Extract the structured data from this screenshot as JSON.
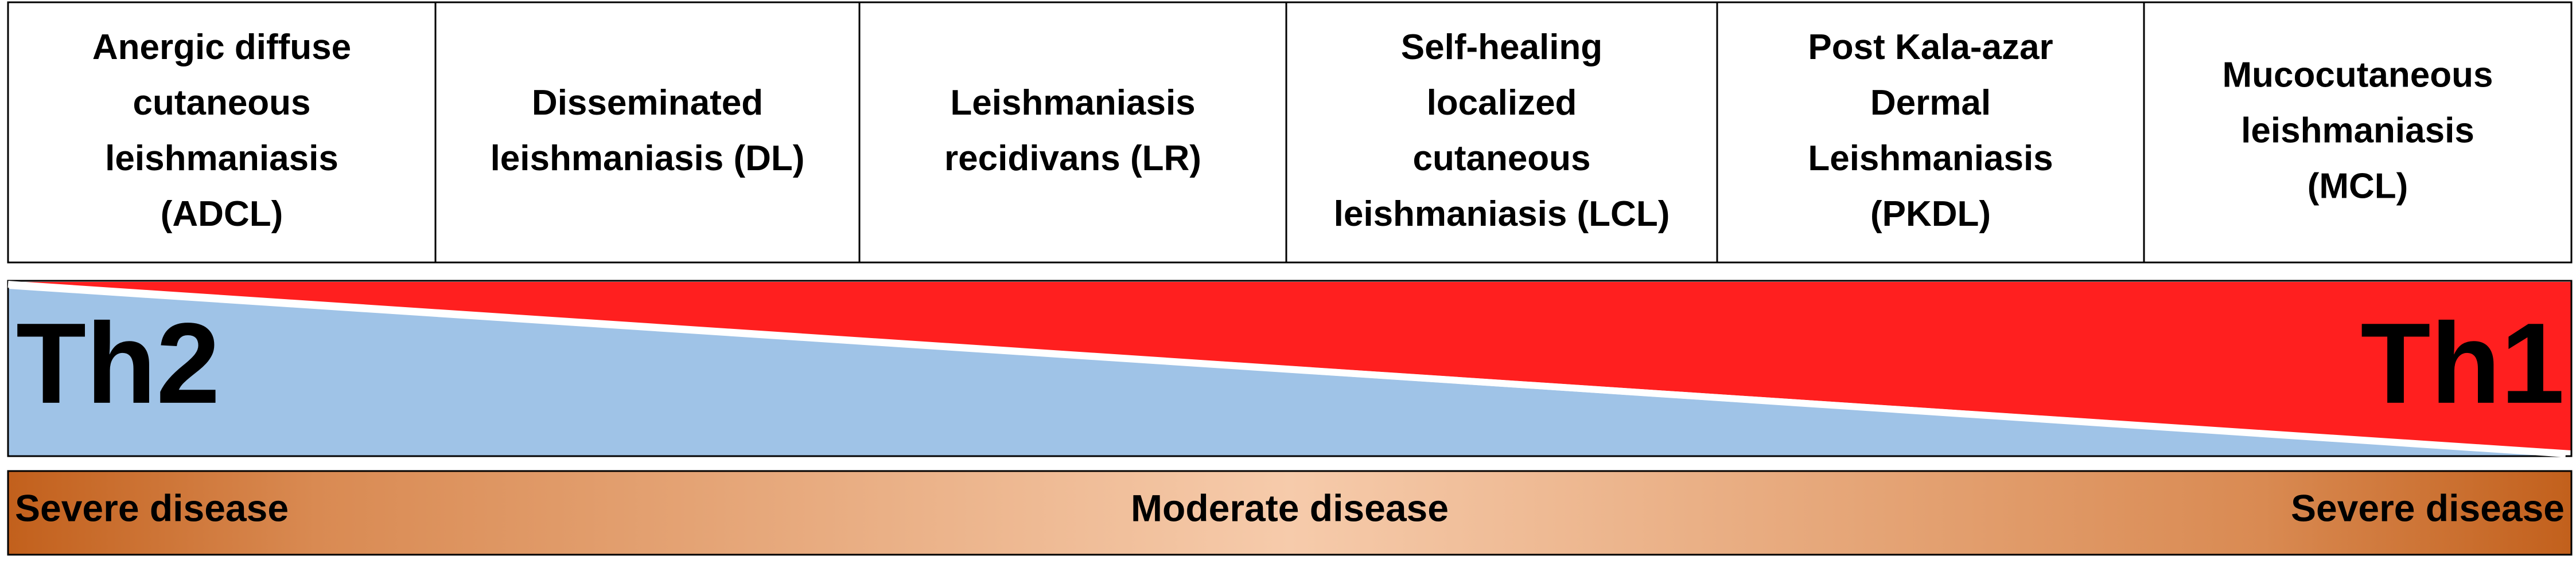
{
  "columns": [
    {
      "lines": [
        "Anergic diffuse",
        "cutaneous",
        "leishmaniasis",
        "(ADCL)"
      ]
    },
    {
      "lines": [
        "Disseminated",
        "leishmaniasis (DL)"
      ]
    },
    {
      "lines": [
        "Leishmaniasis",
        "recidivans (LR)"
      ]
    },
    {
      "lines": [
        "Self-healing",
        "localized",
        "cutaneous",
        "leishmaniasis (LCL)"
      ]
    },
    {
      "lines": [
        "Post Kala-azar",
        "Dermal",
        "Leishmaniasis",
        "(PKDL)"
      ]
    },
    {
      "lines": [
        "Mucocutaneous",
        "leishmaniasis",
        "(MCL)"
      ]
    }
  ],
  "response": {
    "left": "Th2",
    "right": "Th1"
  },
  "severity": {
    "left": "Severe disease",
    "center": "Moderate disease",
    "right": "Severe disease"
  }
}
